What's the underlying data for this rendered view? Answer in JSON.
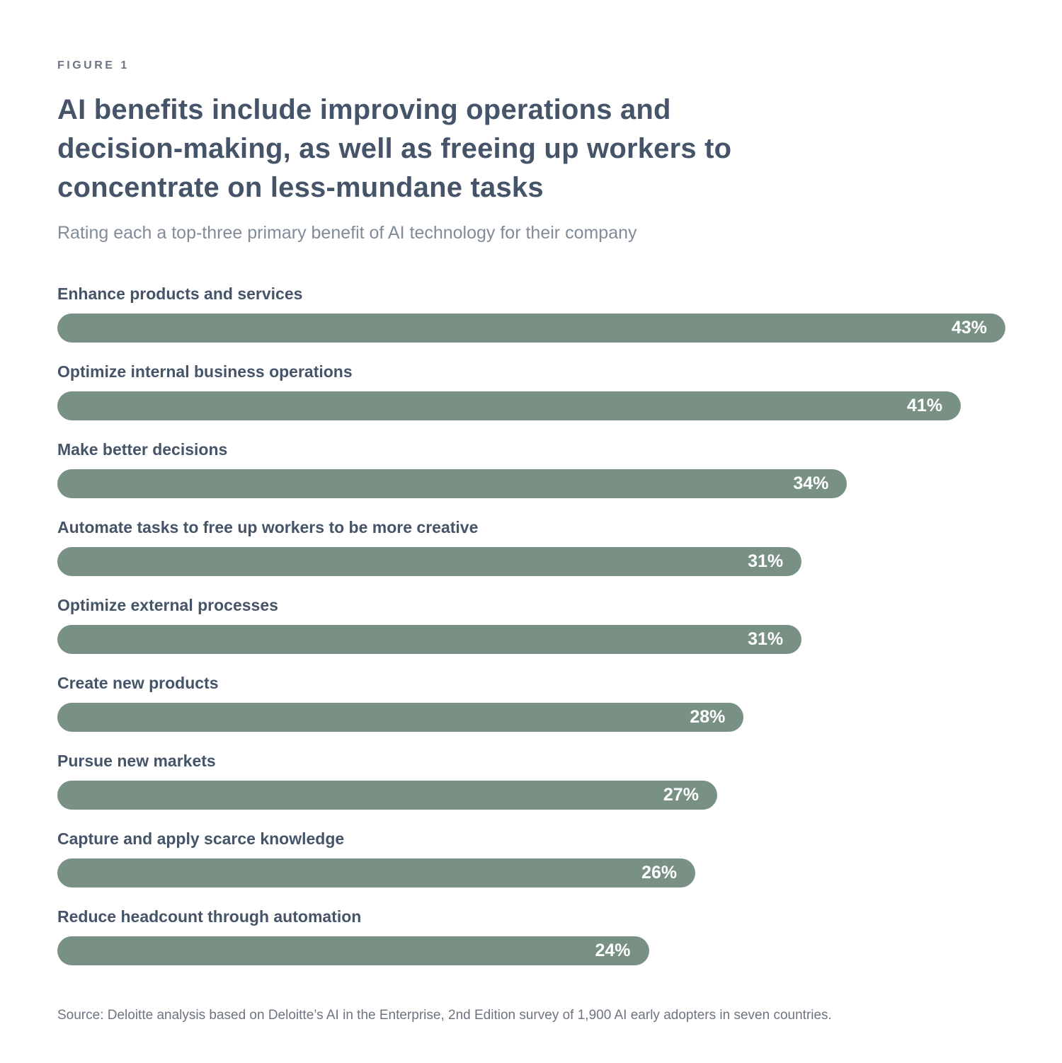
{
  "header": {
    "figure_label": "FIGURE 1",
    "title": "AI benefits include improving operations and decision-making, as well as freeing up workers to concentrate on less-mundane tasks",
    "title_lines": [
      "AI benefits include improving operations and",
      "decision-making, as well as freeing up workers to",
      "concentrate on less-mundane tasks"
    ],
    "subtitle": "Rating each a top-three primary benefit of AI technology for their company"
  },
  "chart_data": {
    "type": "bar",
    "orientation": "horizontal",
    "title": "AI benefits include improving operations and decision-making, as well as freeing up workers to concentrate on less-mundane tasks",
    "subtitle": "Rating each a top-three primary benefit of AI technology for their company",
    "categories": [
      "Enhance products and services",
      "Optimize internal business operations",
      "Make better decisions",
      "Automate tasks to free up workers to be more creative",
      "Optimize external processes",
      "Create new products",
      "Pursue new markets",
      "Capture and apply scarce knowledge",
      "Reduce headcount through automation"
    ],
    "values": [
      43,
      41,
      34,
      31,
      31,
      28,
      27,
      26,
      24
    ],
    "value_suffix": "%",
    "value_labels": [
      "43%",
      "41%",
      "34%",
      "31%",
      "31%",
      "28%",
      "27%",
      "26%",
      "24%"
    ],
    "xlabel": "",
    "ylabel": "",
    "xlim": [
      0,
      43
    ],
    "grid": false,
    "legend": false,
    "value_labels_position": "inside-end",
    "bar_color": "#799184",
    "value_label_color": "#ffffff",
    "category_label_color": "#455468",
    "bar_width_pcts": [
      100,
      95.3,
      83.3,
      78.5,
      78.5,
      72.4,
      69.6,
      67.3,
      62.4
    ]
  },
  "footer": {
    "source": "Source: Deloitte analysis based on Deloitte’s AI in the Enterprise, 2nd Edition survey of 1,900 AI early adopters in seven countries."
  }
}
